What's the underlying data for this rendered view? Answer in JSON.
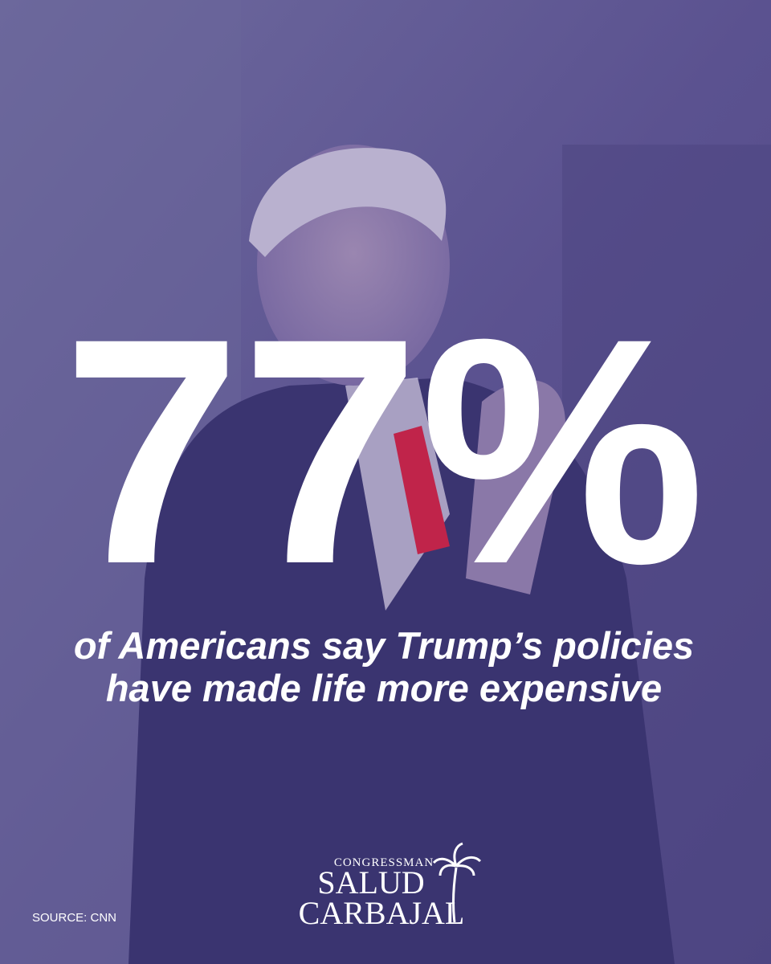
{
  "headline": "77%",
  "caption": [
    "of Americans say Trump’s policies",
    "have made life more expensive"
  ],
  "logo": {
    "top": "CONGRESSMAN",
    "first": "SALUD",
    "last": "CARBAJAL"
  },
  "source": "SOURCE: CNN"
}
